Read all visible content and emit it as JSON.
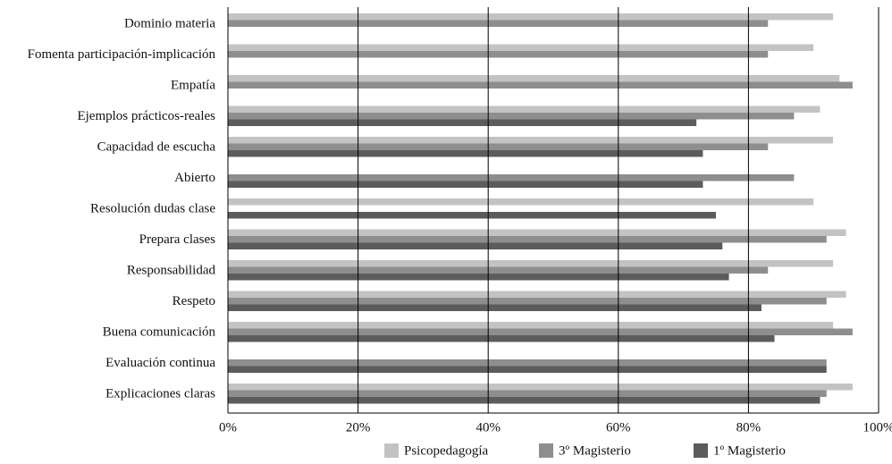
{
  "chart_data": {
    "type": "bar",
    "orientation": "horizontal",
    "categories": [
      "Dominio materia",
      "Fomenta participación-implicación",
      "Empatía",
      "Ejemplos prácticos-reales",
      "Capacidad de escucha",
      "Abierto",
      "Resolución dudas clase",
      "Prepara clases",
      "Responsabilidad",
      "Respeto",
      "Buena comunicación",
      "Evaluación continua",
      "Explicaciones claras"
    ],
    "series": [
      {
        "name": "Psicopedagogía",
        "color": "#c3c3c3",
        "values": [
          93,
          90,
          94,
          91,
          93,
          null,
          90,
          95,
          93,
          95,
          93,
          null,
          96
        ]
      },
      {
        "name": "3º Magisterio",
        "color": "#8e8e8e",
        "values": [
          83,
          83,
          96,
          87,
          83,
          87,
          null,
          92,
          83,
          92,
          96,
          92,
          92
        ]
      },
      {
        "name": "1º Magisterio",
        "color": "#5c5c5c",
        "values": [
          null,
          null,
          null,
          72,
          73,
          73,
          75,
          76,
          77,
          82,
          84,
          92,
          91
        ]
      }
    ],
    "xlim": [
      0,
      100
    ],
    "xticks": [
      {
        "value": 0,
        "label": "0%"
      },
      {
        "value": 20,
        "label": "20%"
      },
      {
        "value": 40,
        "label": "40%"
      },
      {
        "value": 60,
        "label": "60%"
      },
      {
        "value": 80,
        "label": "80%"
      },
      {
        "value": 100,
        "label": "100%"
      }
    ],
    "grid": true
  }
}
